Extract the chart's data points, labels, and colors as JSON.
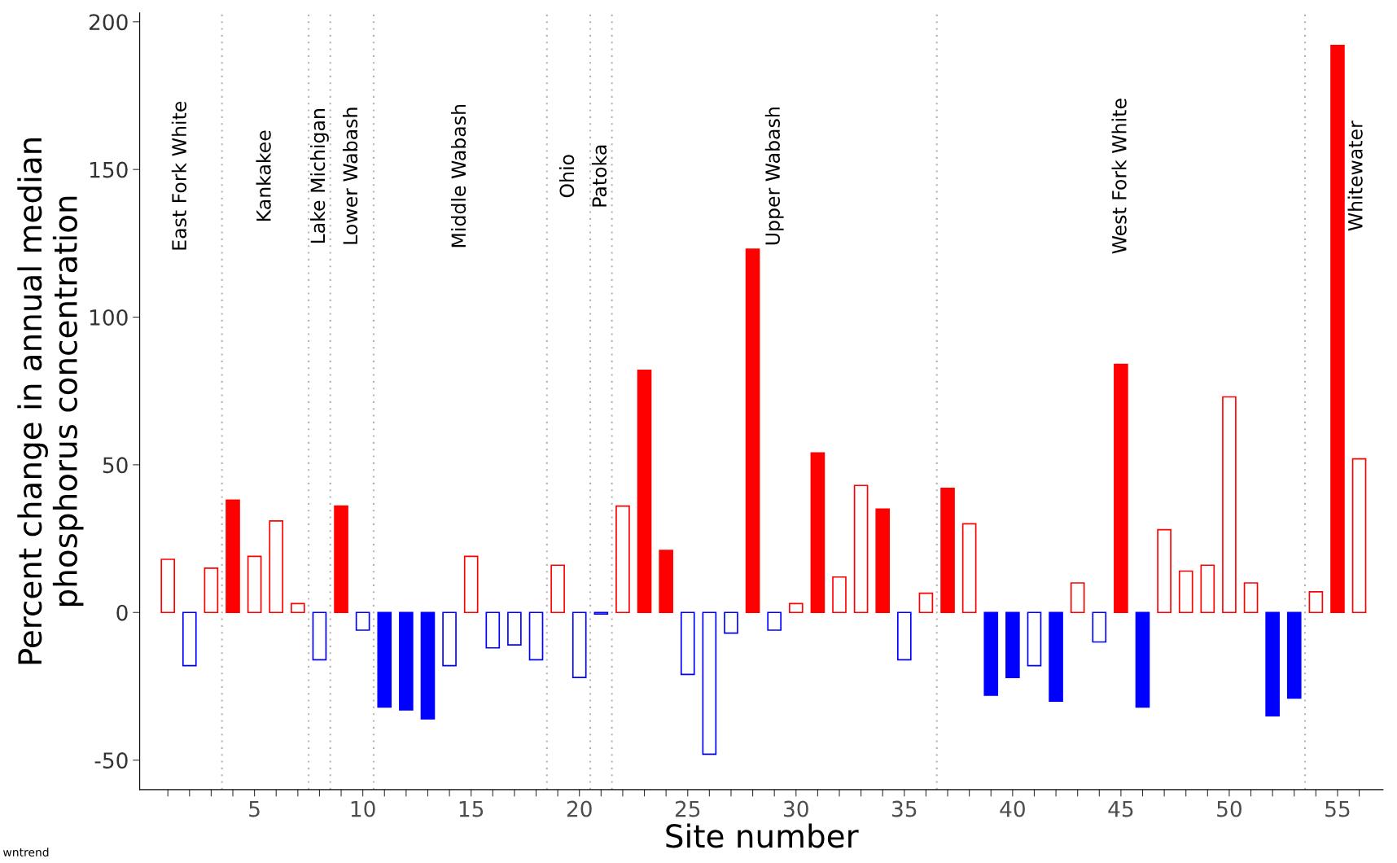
{
  "chart_data": {
    "type": "bar",
    "xlabel": "Site number",
    "ylabel": "Percent change in annual median\nphosphorus concentration",
    "x": [
      1,
      2,
      3,
      4,
      5,
      6,
      7,
      8,
      9,
      10,
      11,
      12,
      13,
      14,
      15,
      16,
      17,
      18,
      19,
      20,
      21,
      22,
      23,
      24,
      25,
      26,
      27,
      28,
      29,
      30,
      31,
      32,
      33,
      34,
      35,
      36,
      37,
      38,
      39,
      40,
      41,
      42,
      43,
      44,
      45,
      46,
      47,
      48,
      49,
      50,
      51,
      52,
      53,
      54,
      55,
      56
    ],
    "series": [
      {
        "values": [
          18,
          -18,
          15,
          null,
          19,
          31,
          3,
          -16,
          null,
          -6,
          null,
          null,
          null,
          -18,
          19,
          -12,
          -11,
          -16,
          16,
          -22,
          -0.5,
          36,
          null,
          null,
          -21,
          -48,
          -7,
          null,
          -6,
          3,
          null,
          12,
          43,
          null,
          -16,
          6.5,
          null,
          30,
          null,
          null,
          -18,
          null,
          10,
          -10,
          null,
          null,
          28,
          14,
          16,
          73,
          10,
          null,
          null,
          7,
          null,
          52
        ],
        "colors": [
          "#ff0000",
          "#0000ff",
          "#ff0000",
          "#ff0000",
          "#ff0000",
          "#ff0000",
          "#ff0000",
          "#0000ff",
          "#ff0000",
          "#0000ff",
          "#0000ff",
          "#0000ff",
          "#0000ff",
          "#0000ff",
          "#ff0000",
          "#0000ff",
          "#0000ff",
          "#0000ff",
          "#ff0000",
          "#0000ff",
          "#0000ff",
          "#ff0000",
          "#ff0000",
          "#ff0000",
          "#0000ff",
          "#0000ff",
          "#0000ff",
          "#ff0000",
          "#0000ff",
          "#ff0000",
          "#ff0000",
          "#ff0000",
          "#ff0000",
          "#ff0000",
          "#0000ff",
          "#ff0000",
          "#ff0000",
          "#ff0000",
          "#0000ff",
          "#0000ff",
          "#0000ff",
          "#0000ff",
          "#ff0000",
          "#0000ff",
          "#ff0000",
          "#0000ff",
          "#ff0000",
          "#ff0000",
          "#ff0000",
          "#ff0000",
          "#ff0000",
          "#0000ff",
          "#0000ff",
          "#ff0000",
          "#ff0000",
          "#ff0000"
        ]
      },
      {
        "values": [
          null,
          null,
          null,
          38,
          null,
          null,
          null,
          null,
          36,
          null,
          -32,
          -33,
          -36,
          null,
          null,
          null,
          null,
          null,
          null,
          null,
          null,
          null,
          82,
          21,
          null,
          null,
          null,
          123,
          null,
          null,
          54,
          null,
          null,
          35,
          null,
          null,
          42,
          null,
          -28,
          -22,
          null,
          -30,
          null,
          null,
          84,
          -32,
          null,
          null,
          null,
          null,
          null,
          -35,
          -29,
          null,
          192,
          null
        ],
        "colors": [
          "#ff0000",
          "#0000ff",
          "#ff0000",
          "#ff0000",
          "#ff0000",
          "#ff0000",
          "#ff0000",
          "#0000ff",
          "#ff0000",
          "#0000ff",
          "#0000ff",
          "#0000ff",
          "#0000ff",
          "#0000ff",
          "#ff0000",
          "#0000ff",
          "#0000ff",
          "#0000ff",
          "#ff0000",
          "#0000ff",
          "#0000ff",
          "#ff0000",
          "#ff0000",
          "#ff0000",
          "#0000ff",
          "#0000ff",
          "#0000ff",
          "#ff0000",
          "#0000ff",
          "#ff0000",
          "#ff0000",
          "#ff0000",
          "#ff0000",
          "#ff0000",
          "#0000ff",
          "#ff0000",
          "#ff0000",
          "#ff0000",
          "#0000ff",
          "#0000ff",
          "#0000ff",
          "#0000ff",
          "#ff0000",
          "#0000ff",
          "#ff0000",
          "#0000ff",
          "#ff0000",
          "#ff0000",
          "#ff0000",
          "#ff0000",
          "#ff0000",
          "#0000ff",
          "#0000ff",
          "#ff0000",
          "#ff0000",
          "#ff0000"
        ]
      }
    ],
    "xlim": [
      -0.3,
      57.1
    ],
    "ylim": [
      -60,
      203
    ],
    "xticks": [
      {
        "value": 1,
        "label": null
      },
      {
        "value": 2,
        "label": null
      },
      {
        "value": 3,
        "label": null
      },
      {
        "value": 4,
        "label": null
      },
      5,
      {
        "value": 6,
        "label": null
      },
      {
        "value": 7,
        "label": null
      },
      {
        "value": 8,
        "label": null
      },
      {
        "value": 9,
        "label": null
      },
      10,
      {
        "value": 11,
        "label": null
      },
      {
        "value": 12,
        "label": null
      },
      {
        "value": 13,
        "label": null
      },
      {
        "value": 14,
        "label": null
      },
      15,
      {
        "value": 16,
        "label": null
      },
      {
        "value": 17,
        "label": null
      },
      {
        "value": 18,
        "label": null
      },
      {
        "value": 19,
        "label": null
      },
      20,
      {
        "value": 21,
        "label": null
      },
      {
        "value": 22,
        "label": null
      },
      {
        "value": 23,
        "label": null
      },
      {
        "value": 24,
        "label": null
      },
      25,
      {
        "value": 26,
        "label": null
      },
      {
        "value": 27,
        "label": null
      },
      {
        "value": 28,
        "label": null
      },
      {
        "value": 29,
        "label": null
      },
      30,
      {
        "value": 31,
        "label": null
      },
      {
        "value": 32,
        "label": null
      },
      {
        "value": 33,
        "label": null
      },
      {
        "value": 34,
        "label": null
      },
      35,
      {
        "value": 36,
        "label": null
      },
      {
        "value": 37,
        "label": null
      },
      {
        "value": 38,
        "label": null
      },
      {
        "value": 39,
        "label": null
      },
      40,
      {
        "value": 41,
        "label": null
      },
      {
        "value": 42,
        "label": null
      },
      {
        "value": 43,
        "label": null
      },
      {
        "value": 44,
        "label": null
      },
      45,
      {
        "value": 46,
        "label": null
      },
      {
        "value": 47,
        "label": null
      },
      {
        "value": 48,
        "label": null
      },
      {
        "value": 49,
        "label": null
      },
      50,
      {
        "value": 51,
        "label": null
      },
      {
        "value": 52,
        "label": null
      },
      {
        "value": 53,
        "label": null
      },
      {
        "value": 54,
        "label": null
      },
      55,
      {
        "value": 56,
        "label": null
      }
    ],
    "yticks": [
      {
        "value": -50,
        "label": "-50"
      },
      0,
      50,
      100,
      150,
      200
    ],
    "ref_lines": [
      {
        "axis": "x",
        "value": 3.5,
        "color": "#b3b3b3",
        "line_style": "dotted"
      },
      {
        "axis": "x",
        "value": 7.5,
        "color": "#b3b3b3",
        "line_style": "dotted"
      },
      {
        "axis": "x",
        "value": 8.5,
        "color": "#b3b3b3",
        "line_style": "dotted"
      },
      {
        "axis": "x",
        "value": 10.5,
        "color": "#b3b3b3",
        "line_style": "dotted"
      },
      {
        "axis": "x",
        "value": 18.5,
        "color": "#b3b3b3",
        "line_style": "dotted"
      },
      {
        "axis": "x",
        "value": 20.5,
        "color": "#b3b3b3",
        "line_style": "dotted"
      },
      {
        "axis": "x",
        "value": 21.5,
        "color": "#b3b3b3",
        "line_style": "dotted"
      },
      {
        "axis": "x",
        "value": 36.5,
        "color": "#b3b3b3",
        "line_style": "dotted"
      },
      {
        "axis": "x",
        "value": 53.5,
        "color": "#b3b3b3",
        "line_style": "dotted"
      }
    ],
    "annotations": [
      "East Fork White",
      "Kankakee",
      "Lake Michigan",
      "Lower Wabash",
      "Middle Wabash",
      "Ohio",
      "Patoka",
      "Upper Wabash",
      "West Fork White",
      "Whitewater",
      "wntrend"
    ],
    "grid": false
  }
}
